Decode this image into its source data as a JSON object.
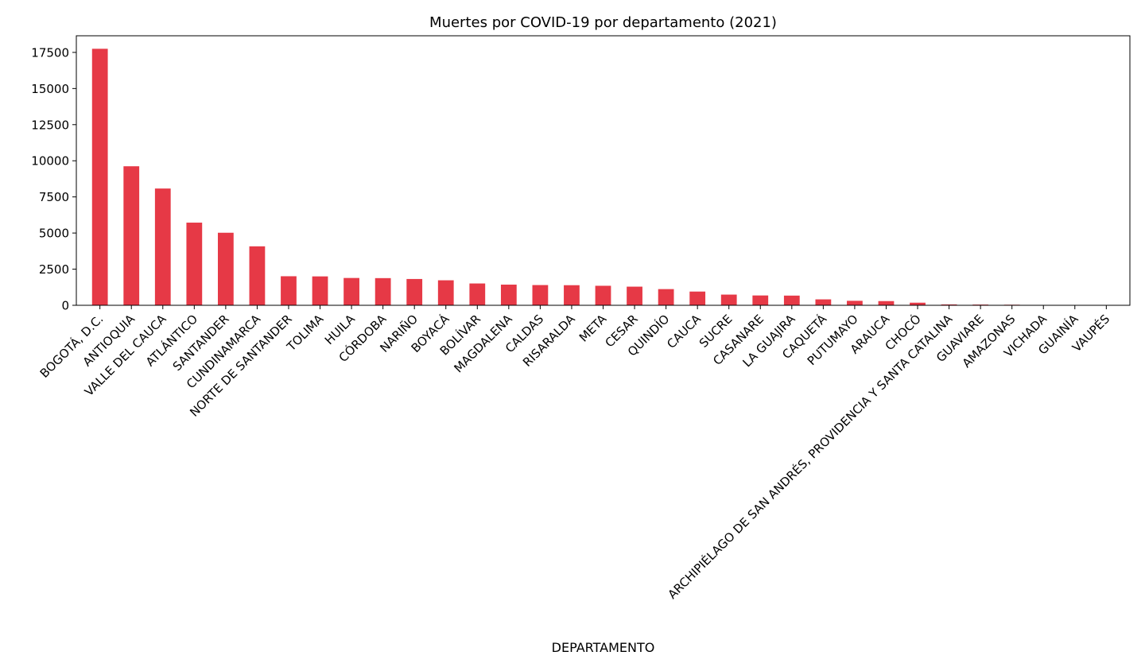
{
  "chart_data": {
    "type": "bar",
    "title": "Muertes por COVID-19 por departamento (2021)",
    "xlabel": "DEPARTAMENTO",
    "ylabel": "",
    "ylim": [
      0,
      18650
    ],
    "yticks": [
      0,
      2500,
      5000,
      7500,
      10000,
      12500,
      15000,
      17500
    ],
    "grid": false,
    "bar_color": "#E63946",
    "categories": [
      "BOGOTÁ, D.C.",
      "ANTIOQUIA",
      "VALLE DEL CAUCA",
      "ATLÁNTICO",
      "SANTANDER",
      "CUNDINAMARCA",
      "NORTE DE SANTANDER",
      "TOLIMA",
      "HUILA",
      "CÓRDOBA",
      "NARIÑO",
      "BOYACÁ",
      "BOLÍVAR",
      "MAGDALENA",
      "CALDAS",
      "RISARALDA",
      "META",
      "CESAR",
      "QUINDÍO",
      "CAUCA",
      "SUCRE",
      "CASANARE",
      "LA GUAJIRA",
      "CAQUETÁ",
      "PUTUMAYO",
      "ARAUCA",
      "CHOCÓ",
      "ARCHIPIÉLAGO DE SAN ANDRÉS, PROVIDENCIA Y SANTA CATALINA",
      "GUAVIARE",
      "AMAZONAS",
      "VICHADA",
      "GUAINÍA",
      "VAUPÉS"
    ],
    "values": [
      17750,
      9620,
      8080,
      5720,
      5020,
      4080,
      2010,
      2000,
      1890,
      1880,
      1820,
      1730,
      1510,
      1430,
      1400,
      1390,
      1350,
      1290,
      1120,
      950,
      740,
      680,
      670,
      410,
      310,
      290,
      180,
      60,
      50,
      40,
      15,
      10,
      5
    ]
  }
}
